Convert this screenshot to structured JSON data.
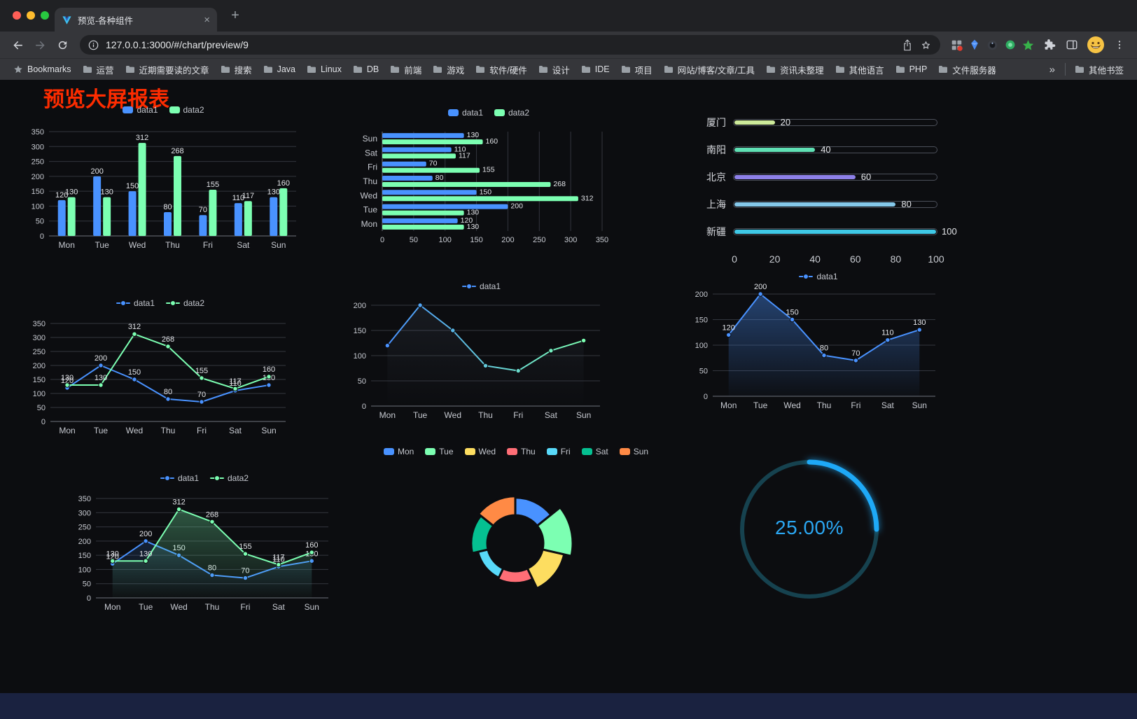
{
  "browser": {
    "tab": {
      "title": "预览-各种组件"
    },
    "icons": {
      "close": "×",
      "plus": "+",
      "overflow": "»"
    },
    "url": "127.0.0.1:3000/#/chart/preview/9",
    "bookmarks_bar": {
      "root_label": "Bookmarks",
      "folders": [
        "运营",
        "近期需要读的文章",
        "搜索",
        "Java",
        "Linux",
        "DB",
        "前端",
        "游戏",
        "软件/硬件",
        "设计",
        "IDE",
        "项目",
        "网站/博客/文章/工具",
        "资讯未整理",
        "其他语言",
        "PHP",
        "文件服务器"
      ],
      "other_label": "其他书签"
    }
  },
  "page": {
    "title": "预览大屏报表",
    "title_color": "#fe2c00",
    "background": "#0c0d10"
  },
  "chart_data": [
    {
      "id": "grouped-bar",
      "type": "bar",
      "categories": [
        "Mon",
        "Tue",
        "Wed",
        "Thu",
        "Fri",
        "Sat",
        "Sun"
      ],
      "series": [
        {
          "name": "data1",
          "color": "#4992ff",
          "values": [
            120,
            200,
            150,
            80,
            70,
            110,
            130
          ]
        },
        {
          "name": "data2",
          "color": "#7cffb2",
          "values": [
            130,
            130,
            312,
            268,
            155,
            117,
            160
          ]
        }
      ],
      "ylim": [
        0,
        350
      ],
      "ytick": 50,
      "legend_position": "top",
      "value_labels": true
    },
    {
      "id": "horizontal-bar",
      "type": "hbar",
      "categories": [
        "Mon",
        "Tue",
        "Wed",
        "Thu",
        "Fri",
        "Sat",
        "Sun"
      ],
      "series": [
        {
          "name": "data1",
          "color": "#4992ff",
          "values": [
            120,
            200,
            150,
            80,
            70,
            110,
            130
          ]
        },
        {
          "name": "data2",
          "color": "#7cffb2",
          "values": [
            130,
            130,
            312,
            268,
            155,
            117,
            160
          ]
        }
      ],
      "xlim": [
        0,
        350
      ],
      "xtick": 50,
      "legend_position": "top",
      "value_labels": true
    },
    {
      "id": "capsule-bars",
      "type": "capsule",
      "xlim": [
        0,
        100
      ],
      "xticks": [
        0,
        20,
        40,
        60,
        80,
        100
      ],
      "rows": [
        {
          "label": "厦门",
          "value": 20,
          "color": "#cdea9a"
        },
        {
          "label": "南阳",
          "value": 40,
          "color": "#5fe0b4"
        },
        {
          "label": "北京",
          "value": 60,
          "color": "#8d80e8"
        },
        {
          "label": "上海",
          "value": 80,
          "color": "#85c8ea"
        },
        {
          "label": "新疆",
          "value": 100,
          "color": "#3fc8e6"
        }
      ]
    },
    {
      "id": "line-two-series",
      "type": "line",
      "categories": [
        "Mon",
        "Tue",
        "Wed",
        "Thu",
        "Fri",
        "Sat",
        "Sun"
      ],
      "series": [
        {
          "name": "data1",
          "color": "#4992ff",
          "values": [
            120,
            200,
            150,
            80,
            70,
            110,
            130
          ],
          "labels": true
        },
        {
          "name": "data2",
          "color": "#7cffb2",
          "values": [
            130,
            130,
            312,
            268,
            155,
            117,
            160
          ],
          "labels": true
        }
      ],
      "ylim": [
        0,
        350
      ],
      "ytick": 50,
      "legend_position": "top"
    },
    {
      "id": "line-gradient",
      "type": "line",
      "categories": [
        "Mon",
        "Tue",
        "Wed",
        "Thu",
        "Fri",
        "Sat",
        "Sun"
      ],
      "series": [
        {
          "name": "data1",
          "color": "#4992ff",
          "values": [
            120,
            200,
            150,
            80,
            70,
            110,
            130
          ],
          "labels": false,
          "stroke_gradient": [
            "#4992ff",
            "#7cffb2"
          ],
          "area_from": "rgba(130,150,180,0.10)",
          "area_to": "rgba(130,150,180,0)"
        }
      ],
      "ylim": [
        0,
        200
      ],
      "ytick": 50,
      "legend_position": "top"
    },
    {
      "id": "line-area",
      "type": "line",
      "categories": [
        "Mon",
        "Tue",
        "Wed",
        "Thu",
        "Fri",
        "Sat",
        "Sun"
      ],
      "series": [
        {
          "name": "data1",
          "color": "#4992ff",
          "values": [
            120,
            200,
            150,
            80,
            70,
            110,
            130
          ],
          "labels": true,
          "area_from": "rgba(73,146,255,0.40)",
          "area_to": "rgba(73,146,255,0.02)"
        }
      ],
      "ylim": [
        0,
        200
      ],
      "ytick": 50,
      "legend_position": "top"
    },
    {
      "id": "line-area-two-series",
      "type": "line",
      "categories": [
        "Mon",
        "Tue",
        "Wed",
        "Thu",
        "Fri",
        "Sat",
        "Sun"
      ],
      "series": [
        {
          "name": "data1",
          "color": "#4992ff",
          "values": [
            120,
            200,
            150,
            80,
            70,
            110,
            130
          ],
          "labels": true,
          "area_from": "rgba(73,146,255,0.16)",
          "area_to": "rgba(73,146,255,0)"
        },
        {
          "name": "data2",
          "color": "#7cffb2",
          "values": [
            130,
            130,
            312,
            268,
            155,
            117,
            160
          ],
          "labels": true,
          "area_from": "rgba(124,255,178,0.30)",
          "area_to": "rgba(124,255,178,0.02)"
        }
      ],
      "ylim": [
        0,
        350
      ],
      "ytick": 50,
      "legend_position": "top"
    },
    {
      "id": "rose-donut",
      "type": "rose",
      "inner_radius": 40,
      "outer_radius_max": 82,
      "slices": [
        {
          "name": "Mon",
          "value": 120,
          "color": "#4992ff"
        },
        {
          "name": "Tue",
          "value": 200,
          "color": "#7cffb2"
        },
        {
          "name": "Wed",
          "value": 150,
          "color": "#fddd60"
        },
        {
          "name": "Thu",
          "value": 80,
          "color": "#ff6e76"
        },
        {
          "name": "Fri",
          "value": 70,
          "color": "#58d9f9"
        },
        {
          "name": "Sat",
          "value": 110,
          "color": "#05c091"
        },
        {
          "name": "Sun",
          "value": 130,
          "color": "#ff8a45"
        }
      ],
      "legend_position": "top"
    },
    {
      "id": "progress-ring",
      "type": "gauge",
      "value": 25,
      "max": 100,
      "display": "25.00%",
      "color": "#1ea9f7",
      "track_color": "#16424f"
    }
  ]
}
